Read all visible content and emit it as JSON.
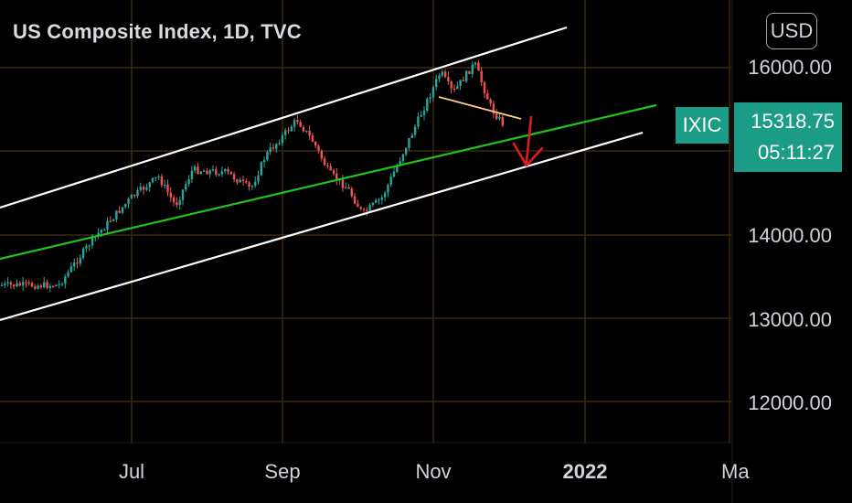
{
  "header": {
    "title": "US Composite Index, 1D, TVC",
    "currency_button": "USD"
  },
  "symbol_badge": {
    "ticker": "IXIC",
    "last_price": "15318.75",
    "countdown": "05:11:27",
    "color": "#1a9c87"
  },
  "colors": {
    "up": "#26a69a",
    "down": "#ef5350",
    "grid": "#3d2a0a",
    "channel": "#ffffff",
    "trend": "#22c21a",
    "neckline": "#ffcc88",
    "arrow": "#e01b1b"
  },
  "chart_data": {
    "type": "candlestick",
    "title": "US Composite Index, 1D, TVC",
    "y_axis": {
      "ticks": [
        "16000.00",
        "14000.00",
        "13000.00",
        "12000.00"
      ],
      "ylim": [
        11600,
        16900
      ]
    },
    "x_axis": {
      "ticks": [
        "Jul",
        "Sep",
        "Nov",
        "2022",
        "Ma"
      ]
    },
    "grid": true,
    "close_path": [
      {
        "date": "2021-06-01",
        "close": 13400
      },
      {
        "date": "2021-06-15",
        "close": 13950
      },
      {
        "date": "2021-07-01",
        "close": 14450
      },
      {
        "date": "2021-07-12",
        "close": 14700
      },
      {
        "date": "2021-07-19",
        "close": 14350
      },
      {
        "date": "2021-07-26",
        "close": 14780
      },
      {
        "date": "2021-08-09",
        "close": 14750
      },
      {
        "date": "2021-08-19",
        "close": 14550
      },
      {
        "date": "2021-08-25",
        "close": 14950
      },
      {
        "date": "2021-09-07",
        "close": 15380
      },
      {
        "date": "2021-09-14",
        "close": 15100
      },
      {
        "date": "2021-09-20",
        "close": 14750
      },
      {
        "date": "2021-09-28",
        "close": 14550
      },
      {
        "date": "2021-10-04",
        "close": 14250
      },
      {
        "date": "2021-10-12",
        "close": 14450
      },
      {
        "date": "2021-10-20",
        "close": 14950
      },
      {
        "date": "2021-10-28",
        "close": 15450
      },
      {
        "date": "2021-11-05",
        "close": 15950
      },
      {
        "date": "2021-11-10",
        "close": 15700
      },
      {
        "date": "2021-11-19",
        "close": 16050
      },
      {
        "date": "2021-11-26",
        "close": 15500
      },
      {
        "date": "2021-12-01",
        "close": 15318.75
      }
    ],
    "annotations": [
      {
        "type": "parallel-channel",
        "color": "white",
        "description": "upper and lower rising channel lines"
      },
      {
        "type": "trend-line",
        "color": "green",
        "description": "rising support line through the middle"
      },
      {
        "type": "line",
        "color": "orange",
        "description": "short descending line from the November high"
      },
      {
        "type": "arrow",
        "color": "red",
        "description": "downward arrow pointing to the lower channel line"
      }
    ]
  }
}
